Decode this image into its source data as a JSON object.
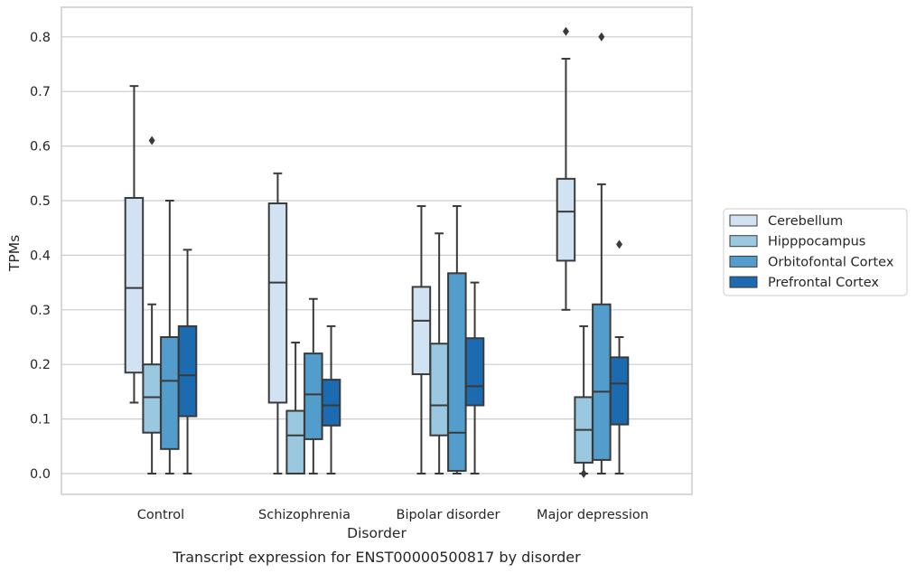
{
  "chart_data": {
    "type": "box",
    "caption": "Transcript expression for ENST00000500817 by disorder",
    "xlabel": "Disorder",
    "ylabel": "TPMs",
    "ylim": [
      -0.04,
      0.855
    ],
    "yticks": [
      0.0,
      0.1,
      0.2,
      0.3,
      0.4,
      0.5,
      0.6,
      0.7,
      0.8
    ],
    "ytick_labels": [
      "0.0",
      "0.1",
      "0.2",
      "0.3",
      "0.4",
      "0.5",
      "0.6",
      "0.7",
      "0.8"
    ],
    "grid": "horizontal",
    "legend_position": "right",
    "categories": [
      "Control",
      "Schizophrenia",
      "Bipolar disorder",
      "Major depression"
    ],
    "series": [
      {
        "name": "Cerebellum",
        "color": "#d1e2f2",
        "boxes": [
          {
            "whislo": 0.13,
            "q1": 0.185,
            "med": 0.34,
            "q3": 0.505,
            "whishi": 0.71,
            "fliers": []
          },
          {
            "whislo": 0.0,
            "q1": 0.13,
            "med": 0.35,
            "q3": 0.495,
            "whishi": 0.55,
            "fliers": []
          },
          {
            "whislo": 0.0,
            "q1": 0.182,
            "med": 0.28,
            "q3": 0.342,
            "whishi": 0.49,
            "fliers": []
          },
          {
            "whislo": 0.3,
            "q1": 0.39,
            "med": 0.48,
            "q3": 0.54,
            "whishi": 0.76,
            "fliers": [
              0.81
            ]
          }
        ]
      },
      {
        "name": "Hipppocampus",
        "color": "#9ac8e0",
        "boxes": [
          {
            "whislo": 0.0,
            "q1": 0.075,
            "med": 0.14,
            "q3": 0.2,
            "whishi": 0.31,
            "fliers": [
              0.61
            ]
          },
          {
            "whislo": 0.0,
            "q1": 0.0,
            "med": 0.07,
            "q3": 0.115,
            "whishi": 0.24,
            "fliers": []
          },
          {
            "whislo": 0.0,
            "q1": 0.07,
            "med": 0.125,
            "q3": 0.238,
            "whishi": 0.44,
            "fliers": []
          },
          {
            "whislo": 0.0,
            "q1": 0.02,
            "med": 0.08,
            "q3": 0.14,
            "whishi": 0.27,
            "fliers": [
              0.0
            ]
          }
        ]
      },
      {
        "name": "Orbitofontal Cortex",
        "color": "#529dcc",
        "boxes": [
          {
            "whislo": 0.0,
            "q1": 0.045,
            "med": 0.17,
            "q3": 0.25,
            "whishi": 0.5,
            "fliers": []
          },
          {
            "whislo": 0.0,
            "q1": 0.063,
            "med": 0.145,
            "q3": 0.22,
            "whishi": 0.32,
            "fliers": []
          },
          {
            "whislo": 0.0,
            "q1": 0.005,
            "med": 0.075,
            "q3": 0.367,
            "whishi": 0.49,
            "fliers": []
          },
          {
            "whislo": 0.0,
            "q1": 0.025,
            "med": 0.15,
            "q3": 0.31,
            "whishi": 0.53,
            "fliers": [
              0.8
            ]
          }
        ]
      },
      {
        "name": "Prefrontal Cortex",
        "color": "#1c6aaf",
        "boxes": [
          {
            "whislo": 0.0,
            "q1": 0.105,
            "med": 0.18,
            "q3": 0.27,
            "whishi": 0.41,
            "fliers": []
          },
          {
            "whislo": 0.0,
            "q1": 0.088,
            "med": 0.125,
            "q3": 0.172,
            "whishi": 0.27,
            "fliers": []
          },
          {
            "whislo": 0.0,
            "q1": 0.125,
            "med": 0.16,
            "q3": 0.248,
            "whishi": 0.35,
            "fliers": []
          },
          {
            "whislo": 0.0,
            "q1": 0.09,
            "med": 0.165,
            "q3": 0.213,
            "whishi": 0.25,
            "fliers": [
              0.42
            ]
          }
        ]
      }
    ]
  }
}
